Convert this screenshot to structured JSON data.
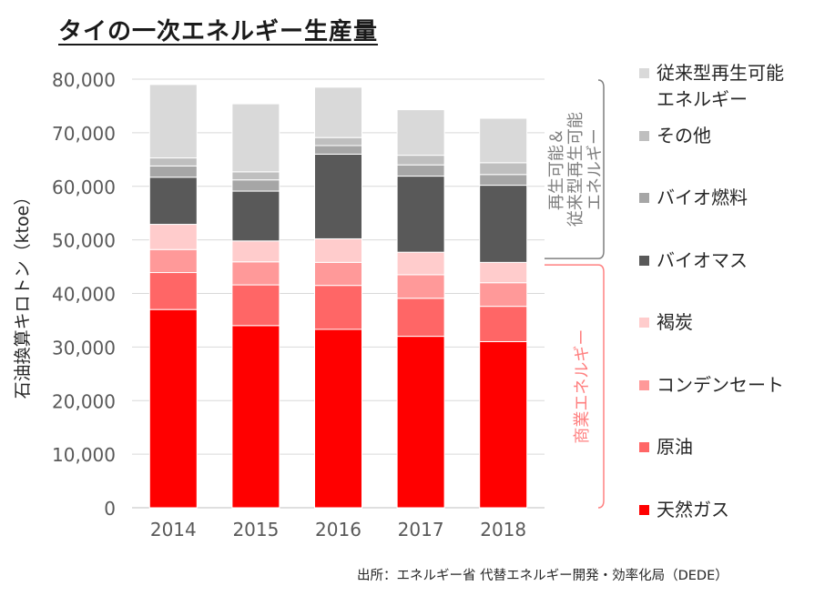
{
  "chart_data": {
    "type": "bar",
    "stacked": true,
    "title": "タイの一次エネルギー生産量",
    "ylabel": "石油換算キロトン（ktoe）",
    "xlabel": "",
    "ylim": [
      0,
      80000
    ],
    "yticks": [
      0,
      10000,
      20000,
      30000,
      40000,
      50000,
      60000,
      70000,
      80000
    ],
    "ytick_labels": [
      "0",
      "10,000",
      "20,000",
      "30,000",
      "40,000",
      "50,000",
      "60,000",
      "70,000",
      "80,000"
    ],
    "categories": [
      "2014",
      "2015",
      "2016",
      "2017",
      "2018"
    ],
    "legend_position": "right",
    "series": [
      {
        "name": "天然ガス",
        "color": "#ff0000",
        "values": [
          37000,
          34000,
          33300,
          32000,
          31000
        ]
      },
      {
        "name": "原油",
        "color": "#ff6666",
        "values": [
          6900,
          7600,
          8200,
          7100,
          6600
        ]
      },
      {
        "name": "コンデンセート",
        "color": "#ff9999",
        "values": [
          4300,
          4300,
          4300,
          4400,
          4400
        ]
      },
      {
        "name": "褐炭",
        "color": "#ffcccc",
        "values": [
          4700,
          3900,
          4400,
          4200,
          3800
        ]
      },
      {
        "name": "バイオマス",
        "color": "#595959",
        "values": [
          8800,
          9300,
          15800,
          14200,
          14400
        ]
      },
      {
        "name": "バイオ燃料",
        "color": "#a6a6a6",
        "values": [
          2100,
          2100,
          1600,
          2100,
          2000
        ]
      },
      {
        "name": "その他",
        "color": "#bfbfbf",
        "values": [
          1500,
          1500,
          1500,
          1800,
          2200
        ]
      },
      {
        "name": "従来型再生可能\nエネルギー",
        "color": "#d9d9d9",
        "values": [
          13700,
          12700,
          9400,
          8500,
          8300
        ]
      }
    ],
    "annotations": [
      {
        "text": "再生可能＆\n従来型再生可能\nエネルギー",
        "color": "#7f7f7f"
      },
      {
        "text": "商業エネルギー",
        "color": "#ff8080"
      }
    ]
  },
  "source": "出所：エネルギー省 代替エネルギー開発・効率化局（DEDE）"
}
